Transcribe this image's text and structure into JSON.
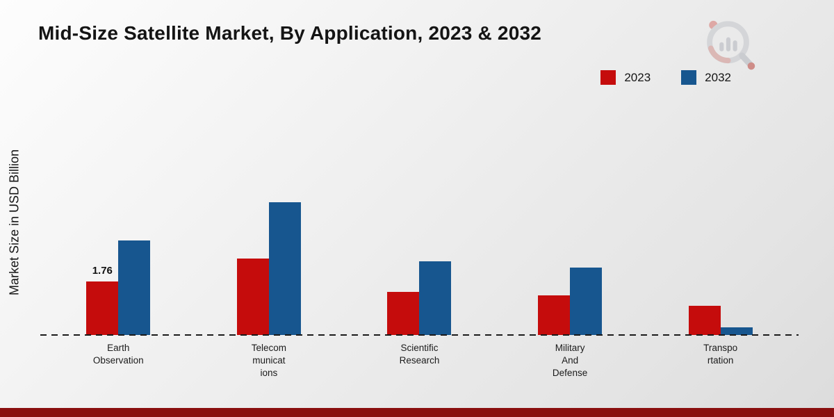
{
  "page": {
    "title": "Mid-Size Satellite Market, By Application, 2023 & 2032",
    "ylabel": "Market Size in USD Billion"
  },
  "legend": {
    "items": [
      {
        "label": "2023",
        "color": "#c50c0c"
      },
      {
        "label": "2032",
        "color": "#17568f"
      }
    ]
  },
  "chart_data": {
    "type": "bar",
    "title": "Mid-Size Satellite Market, By Application, 2023 & 2032",
    "ylabel": "Market Size in USD Billion",
    "xlabel": "",
    "categories": [
      "Earth\nObservation",
      "Telecom\nmunicat\nions",
      "Scientific\nResearch",
      "Military\nAnd\nDefense",
      "Transpo\nrtation"
    ],
    "series": [
      {
        "name": "2023",
        "color": "#c50c0c",
        "values": [
          1.76,
          2.5,
          1.4,
          1.3,
          0.95
        ],
        "value_labels": [
          "1.76",
          "",
          "",
          "",
          ""
        ]
      },
      {
        "name": "2032",
        "color": "#17568f",
        "values": [
          3.1,
          4.35,
          2.4,
          2.2,
          0.25
        ],
        "value_labels": [
          "",
          "",
          "",
          "",
          ""
        ]
      }
    ],
    "ylim": [
      0,
      5
    ],
    "grid": false,
    "baseline_style": "dashed",
    "legend_position": "top-right"
  },
  "branding": {
    "logo": "market-research-magnifier-logo",
    "footer_color": "#8a0f0f"
  }
}
